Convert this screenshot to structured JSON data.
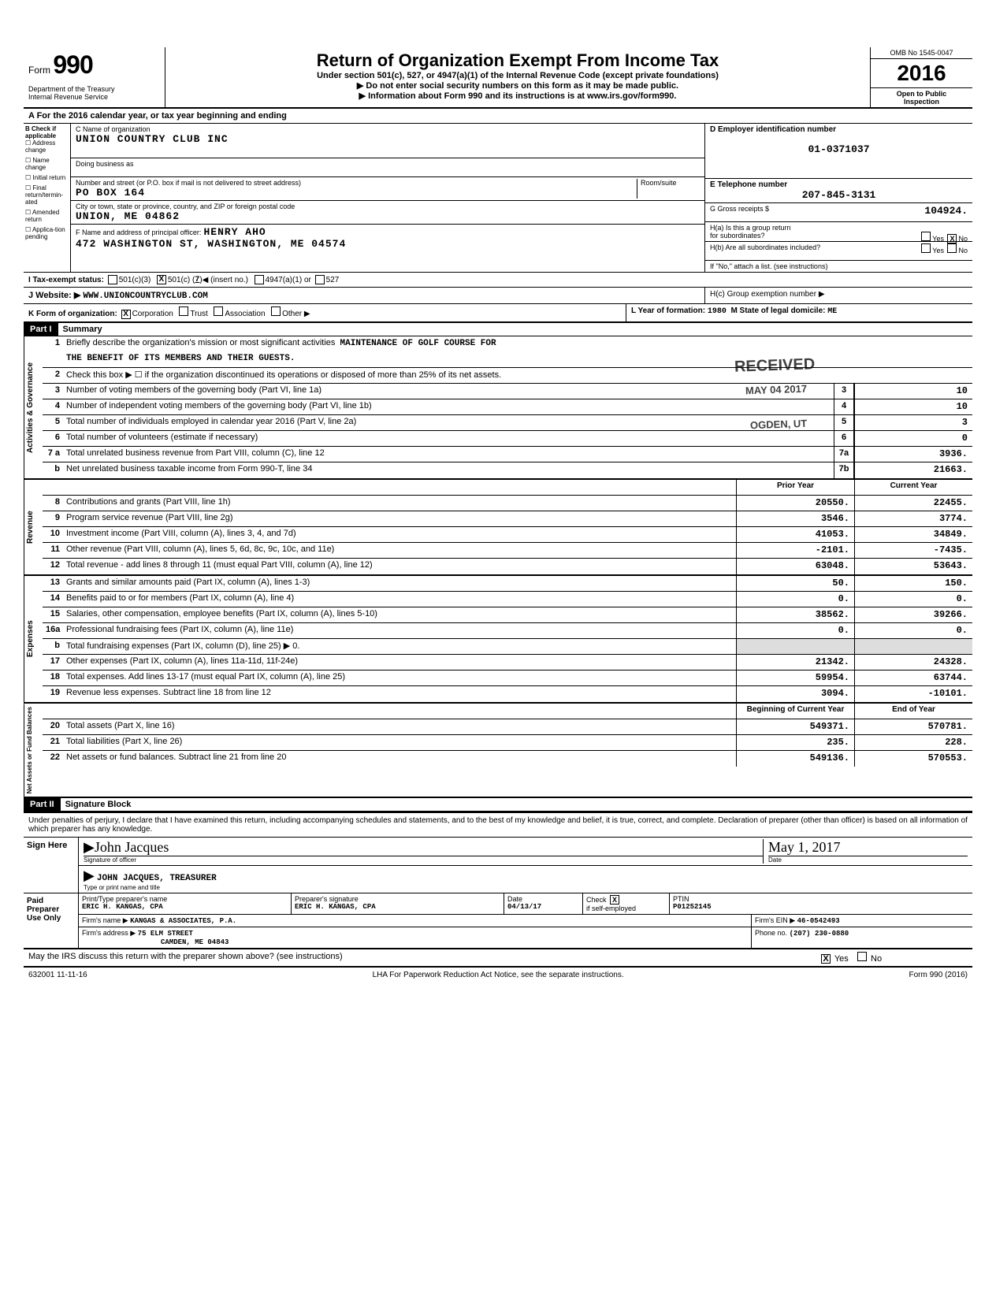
{
  "header": {
    "form_label": "Form",
    "form_number": "990",
    "dept1": "Department of the Treasury",
    "dept2": "Internal Revenue Service",
    "title": "Return of Organization Exempt From Income Tax",
    "subtitle": "Under section 501(c), 527, or 4947(a)(1) of the Internal Revenue Code (except private foundations)",
    "warn": "▶ Do not enter social security numbers on this form as it may be made public.",
    "info": "▶ Information about Form 990 and its instructions is at www.irs.gov/form990.",
    "omb": "OMB No 1545-0047",
    "year": "2016",
    "open1": "Open to Public",
    "open2": "Inspection"
  },
  "rowA": "A  For the 2016 calendar year, or tax year beginning                                                and ending",
  "colB": {
    "label": "B Check if applicable",
    "items": [
      "Address change",
      "Name change",
      "Initial return",
      "Final return/termin-ated",
      "Amended return",
      "Applica-tion pending"
    ]
  },
  "colC": {
    "name_label": "C Name of organization",
    "name": "UNION COUNTRY CLUB INC",
    "dba_label": "Doing business as",
    "dba": "",
    "addr_label": "Number and street (or P.O. box if mail is not delivered to street address)",
    "room_label": "Room/suite",
    "addr": "PO BOX 164",
    "city_label": "City or town, state or province, country, and ZIP or foreign postal code",
    "city": "UNION, ME   04862",
    "officer_label": "F Name and address of principal officer:",
    "officer_name": "HENRY AHO",
    "officer_addr": "472 WASHINGTON ST, WASHINGTON, ME  04574"
  },
  "colD": {
    "ein_label": "D Employer identification number",
    "ein": "01-0371037",
    "phone_label": "E Telephone number",
    "phone": "207-845-3131",
    "gross_label": "G Gross receipts $",
    "gross": "104924.",
    "ha_label": "H(a) Is this a group return",
    "ha_sub": "for subordinates?",
    "ha_yes": "Yes",
    "ha_no": "No",
    "hb_label": "H(b) Are all subordinates included?",
    "hb_yes": "Yes",
    "hb_no": "No",
    "hb_note": "If \"No,\" attach a list. (see instructions)",
    "hc_label": "H(c) Group exemption number ▶"
  },
  "rowI": {
    "label": "I  Tax-exempt status:",
    "c3": "501(c)(3)",
    "c": "501(c) (",
    "c_num": "7",
    "c_suffix": ")◀ (insert no.)",
    "a1": "4947(a)(1) or",
    "s527": "527"
  },
  "rowJ": {
    "label": "J  Website: ▶",
    "value": "WWW.UNIONCOUNTRYCLUB.COM"
  },
  "rowK": {
    "label": "K Form of organization:",
    "corp": "Corporation",
    "trust": "Trust",
    "assoc": "Association",
    "other": "Other ▶",
    "year_label": "L Year of formation:",
    "year": "1980",
    "state_label": "M State of legal domicile:",
    "state": "ME"
  },
  "partI": {
    "header": "Part I",
    "title": "Summary",
    "sideA": "Activities & Governance",
    "sideR": "Revenue",
    "sideE": "Expenses",
    "sideN": "Net Assets or Fund Balances",
    "line1_label": "Briefly describe the organization's mission or most significant activities",
    "line1_value": "MAINTENANCE OF GOLF COURSE FOR",
    "line1_value2": "THE BENEFIT OF ITS MEMBERS AND THEIR GUESTS.",
    "line2": "Check this box ▶ ☐ if the organization discontinued its operations or disposed of more than 25% of its net assets.",
    "stamp_received": "RECEIVED",
    "stamp_date": "MAY 04 2017",
    "stamp_loc": "OGDEN, UT",
    "lines_ag": [
      {
        "n": "3",
        "desc": "Number of voting members of the governing body (Part VI, line 1a)",
        "box": "3",
        "val": "10"
      },
      {
        "n": "4",
        "desc": "Number of independent voting members of the governing body (Part VI, line 1b)",
        "box": "4",
        "val": "10"
      },
      {
        "n": "5",
        "desc": "Total number of individuals employed in calendar year 2016 (Part V, line 2a)",
        "box": "5",
        "val": "3"
      },
      {
        "n": "6",
        "desc": "Total number of volunteers (estimate if necessary)",
        "box": "6",
        "val": "0"
      },
      {
        "n": "7 a",
        "desc": "Total unrelated business revenue from Part VIII, column (C), line 12",
        "box": "7a",
        "val": "3936."
      },
      {
        "n": "b",
        "desc": "Net unrelated business taxable income from Form 990-T, line 34",
        "box": "7b",
        "val": "21663."
      }
    ],
    "col_prior": "Prior Year",
    "col_current": "Current Year",
    "lines_rev": [
      {
        "n": "8",
        "desc": "Contributions and grants (Part VIII, line 1h)",
        "prior": "20550.",
        "curr": "22455."
      },
      {
        "n": "9",
        "desc": "Program service revenue (Part VIII, line 2g)",
        "prior": "3546.",
        "curr": "3774."
      },
      {
        "n": "10",
        "desc": "Investment income (Part VIII, column (A), lines 3, 4, and 7d)",
        "prior": "41053.",
        "curr": "34849."
      },
      {
        "n": "11",
        "desc": "Other revenue (Part VIII, column (A), lines 5, 6d, 8c, 9c, 10c, and 11e)",
        "prior": "-2101.",
        "curr": "-7435."
      },
      {
        "n": "12",
        "desc": "Total revenue - add lines 8 through 11 (must equal Part VIII, column (A), line 12)",
        "prior": "63048.",
        "curr": "53643."
      }
    ],
    "lines_exp": [
      {
        "n": "13",
        "desc": "Grants and similar amounts paid (Part IX, column (A), lines 1-3)",
        "prior": "50.",
        "curr": "150."
      },
      {
        "n": "14",
        "desc": "Benefits paid to or for members (Part IX, column (A), line 4)",
        "prior": "0.",
        "curr": "0."
      },
      {
        "n": "15",
        "desc": "Salaries, other compensation, employee benefits (Part IX, column (A), lines 5-10)",
        "prior": "38562.",
        "curr": "39266."
      },
      {
        "n": "16a",
        "desc": "Professional fundraising fees (Part IX, column (A), line 11e)",
        "prior": "0.",
        "curr": "0."
      },
      {
        "n": "b",
        "desc": "Total fundraising expenses (Part IX, column (D), line 25)   ▶                    0.",
        "prior": "",
        "curr": "",
        "shade": true
      },
      {
        "n": "17",
        "desc": "Other expenses (Part IX, column (A), lines 11a-11d, 11f-24e)",
        "prior": "21342.",
        "curr": "24328."
      },
      {
        "n": "18",
        "desc": "Total expenses. Add lines 13-17 (must equal Part IX, column (A), line 25)",
        "prior": "59954.",
        "curr": "63744."
      },
      {
        "n": "19",
        "desc": "Revenue less expenses. Subtract line 18 from line 12",
        "prior": "3094.",
        "curr": "-10101."
      }
    ],
    "col_begin": "Beginning of Current Year",
    "col_end": "End of Year",
    "lines_net": [
      {
        "n": "20",
        "desc": "Total assets (Part X, line 16)",
        "prior": "549371.",
        "curr": "570781."
      },
      {
        "n": "21",
        "desc": "Total liabilities (Part X, line 26)",
        "prior": "235.",
        "curr": "228."
      },
      {
        "n": "22",
        "desc": "Net assets or fund balances. Subtract line 21 from line 20",
        "prior": "549136.",
        "curr": "570553."
      }
    ]
  },
  "partII": {
    "header": "Part II",
    "title": "Signature Block",
    "perjury": "Under penalties of perjury, I declare that I have examined this return, including accompanying schedules and statements, and to the best of my knowledge and belief, it is true, correct, and complete. Declaration of preparer (other than officer) is based on all information of which preparer has any knowledge.",
    "sign_here": "Sign Here",
    "sig_officer_label": "Signature of officer",
    "sig_officer": "John Jacques",
    "sig_date_label": "Date",
    "sig_date": "May 1, 2017",
    "officer_name": "JOHN JACQUES, TREASURER",
    "officer_name_label": "Type or print name and title",
    "paid": "Paid Preparer Use Only",
    "prep_name_label": "Print/Type preparer's name",
    "prep_name": "ERIC H. KANGAS, CPA",
    "prep_sig_label": "Preparer's signature",
    "prep_sig": "ERIC H. KANGAS, CPA",
    "prep_date_label": "Date",
    "prep_date": "04/13/17",
    "check_label": "Check",
    "self_emp": "if self-employed",
    "ptin_label": "PTIN",
    "ptin": "P01252145",
    "firm_name_label": "Firm's name ▶",
    "firm_name": "KANGAS & ASSOCIATES, P.A.",
    "firm_ein_label": "Firm's EIN ▶",
    "firm_ein": "46-0542493",
    "firm_addr_label": "Firm's address ▶",
    "firm_addr1": "75 ELM STREET",
    "firm_addr2": "CAMDEN, ME 04843",
    "phone_label": "Phone no.",
    "phone": "(207) 230-0880",
    "discuss": "May the IRS discuss this return with the preparer shown above? (see instructions)",
    "discuss_yes": "Yes",
    "discuss_no": "No"
  },
  "footer": {
    "left": "632001 11-11-16",
    "mid": "LHA  For Paperwork Reduction Act Notice, see the separate instructions.",
    "right": "Form 990 (2016)"
  }
}
